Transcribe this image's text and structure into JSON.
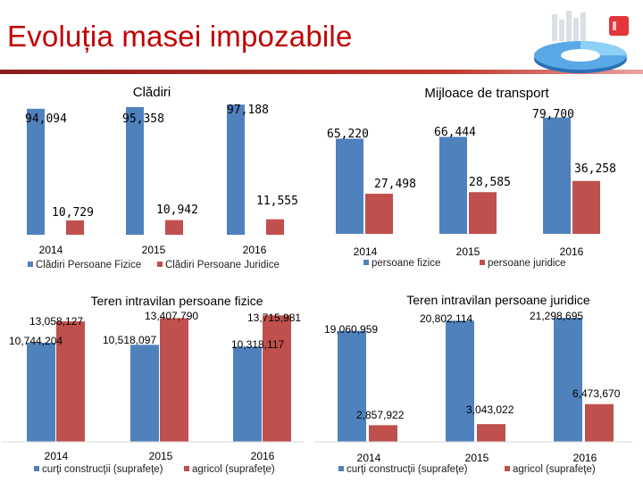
{
  "page_title": "Evoluția masei impozabile",
  "colors": {
    "blue": "#4f81bd",
    "red": "#c0504d",
    "title": "#c00000"
  },
  "chart_data": [
    {
      "type": "bar",
      "title": "Clădiri",
      "categories": [
        "2014",
        "2015",
        "2016"
      ],
      "series": [
        {
          "name": "Clădiri Persoane Fizice",
          "values": [
            94094,
            95358,
            97188
          ],
          "labels": [
            "94,094",
            "95,358",
            "97,188"
          ]
        },
        {
          "name": "Clădiri Persoane Juridice",
          "values": [
            10729,
            10942,
            11555
          ],
          "labels": [
            "10,729",
            "10,942",
            "11,555"
          ]
        }
      ],
      "ylim": [
        0,
        100000
      ]
    },
    {
      "type": "bar",
      "title": "Mijloace de transport",
      "categories": [
        "2014",
        "2015",
        "2016"
      ],
      "series": [
        {
          "name": "persoane fizice",
          "values": [
            65220,
            66444,
            79700
          ],
          "labels": [
            "65,220",
            "66,444",
            "79,700"
          ]
        },
        {
          "name": "persoane juridice",
          "values": [
            27498,
            28585,
            36258
          ],
          "labels": [
            "27,498",
            "28,585",
            "36,258"
          ]
        }
      ],
      "ylim": [
        0,
        85000
      ]
    },
    {
      "type": "bar",
      "title": "Teren intravilan persoane fizice",
      "categories": [
        "2014",
        "2015",
        "2016"
      ],
      "series": [
        {
          "name": "curţi construcţii (suprafeţe)",
          "values": [
            10744204,
            10518097,
            10318117
          ],
          "labels": [
            "10,744,204",
            "10,518,097",
            "10,318,117"
          ]
        },
        {
          "name": "agricol (suprafeţe)",
          "values": [
            13058127,
            13407790,
            13715981
          ],
          "labels": [
            "13,058,127",
            "13,407,790",
            "13,715,981"
          ]
        }
      ],
      "ylim": [
        0,
        15000000
      ]
    },
    {
      "type": "bar",
      "title": "Teren intravilan persoane juridice",
      "categories": [
        "2014",
        "2015",
        "2016"
      ],
      "series": [
        {
          "name": "curţi construcţii (suprafeţe)",
          "values": [
            19060959,
            20802114,
            21298695
          ],
          "labels": [
            "19,060,959",
            "20,802,114",
            "21,298,695"
          ]
        },
        {
          "name": "agricol (suprafeţe)",
          "values": [
            2857922,
            3043022,
            6473670
          ],
          "labels": [
            "2,857,922",
            "3,043,022",
            "6,473,670"
          ]
        }
      ],
      "ylim": [
        0,
        23000000
      ]
    }
  ]
}
